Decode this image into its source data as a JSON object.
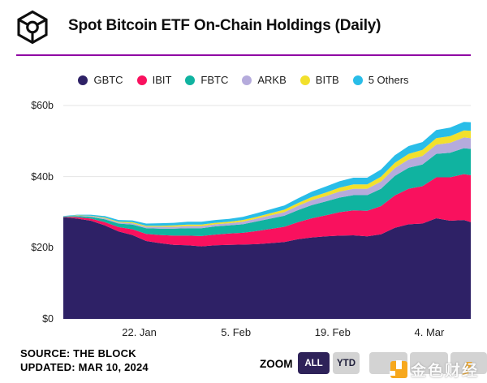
{
  "header": {
    "title": "Spot Bitcoin ETF On-Chain Holdings (Daily)",
    "logo_name": "the-block-logo",
    "divider_color": "#8f00a3"
  },
  "legend": [
    {
      "label": "GBTC",
      "color": "#2e2166"
    },
    {
      "label": "IBIT",
      "color": "#f9115e"
    },
    {
      "label": "FBTC",
      "color": "#10b3a0"
    },
    {
      "label": "ARKB",
      "color": "#b5abdc"
    },
    {
      "label": "BITB",
      "color": "#f2e02c"
    },
    {
      "label": "5 Others",
      "color": "#29bde8"
    }
  ],
  "chart_data": {
    "type": "area",
    "stacked": true,
    "title": "Spot Bitcoin ETF On-Chain Holdings (Daily)",
    "unit": "USD billions",
    "grid": true,
    "legend_position": "top",
    "ylim": [
      0,
      60
    ],
    "y_ticks": [
      {
        "value": 0,
        "label": "$0"
      },
      {
        "value": 20,
        "label": "$20b"
      },
      {
        "value": 40,
        "label": "$40b"
      },
      {
        "value": 60,
        "label": "$60b"
      }
    ],
    "x_range_days": [
      0,
      59
    ],
    "x_ticks": [
      {
        "day": 11,
        "label": "22. Jan"
      },
      {
        "day": 25,
        "label": "5. Feb"
      },
      {
        "day": 39,
        "label": "19. Feb"
      },
      {
        "day": 53,
        "label": "4. Mar"
      }
    ],
    "sample_days": [
      0,
      2,
      4,
      6,
      8,
      10,
      12,
      14,
      16,
      18,
      20,
      22,
      24,
      26,
      28,
      30,
      32,
      34,
      36,
      38,
      40,
      42,
      44,
      46,
      48,
      50,
      52,
      54,
      56,
      58,
      59
    ],
    "sample_dates": [
      "Jan 11",
      "Jan 13",
      "Jan 15",
      "Jan 17",
      "Jan 19",
      "Jan 21",
      "Jan 23",
      "Jan 25",
      "Jan 27",
      "Jan 29",
      "Jan 31",
      "Feb 2",
      "Feb 4",
      "Feb 6",
      "Feb 8",
      "Feb 10",
      "Feb 12",
      "Feb 14",
      "Feb 16",
      "Feb 18",
      "Feb 20",
      "Feb 22",
      "Feb 24",
      "Feb 26",
      "Feb 28",
      "Mar 1",
      "Mar 3",
      "Mar 5",
      "Mar 7",
      "Mar 9",
      "Mar 10"
    ],
    "series": [
      {
        "name": "GBTC",
        "color": "#2e2166",
        "values": [
          28.6,
          28.2,
          27.6,
          26.3,
          24.6,
          23.6,
          21.9,
          21.3,
          20.8,
          20.7,
          20.4,
          20.7,
          20.8,
          20.9,
          21.0,
          21.3,
          21.6,
          22.4,
          22.9,
          23.2,
          23.4,
          23.5,
          23.2,
          23.8,
          25.6,
          26.6,
          26.8,
          28.3,
          27.6,
          27.8,
          27.2
        ]
      },
      {
        "name": "IBIT",
        "color": "#f9115e",
        "values": [
          0.1,
          0.4,
          0.6,
          0.9,
          1.2,
          1.6,
          2.0,
          2.3,
          2.6,
          2.7,
          2.9,
          3.0,
          3.2,
          3.3,
          3.7,
          4.0,
          4.3,
          4.8,
          5.4,
          5.9,
          6.6,
          7.0,
          7.2,
          7.9,
          9.1,
          10.0,
          10.5,
          11.5,
          12.2,
          12.9,
          13.2
        ]
      },
      {
        "name": "FBTC",
        "color": "#10b3a0",
        "values": [
          0.1,
          0.3,
          0.5,
          0.8,
          1.0,
          1.3,
          1.6,
          1.8,
          2.0,
          2.1,
          2.2,
          2.3,
          2.3,
          2.4,
          2.7,
          2.9,
          3.1,
          3.4,
          3.7,
          3.9,
          4.1,
          4.3,
          4.4,
          4.9,
          5.5,
          5.9,
          6.1,
          6.6,
          6.9,
          7.3,
          7.4
        ]
      },
      {
        "name": "ARKB",
        "color": "#b5abdc",
        "values": [
          0.0,
          0.1,
          0.2,
          0.3,
          0.3,
          0.4,
          0.4,
          0.5,
          0.5,
          0.6,
          0.6,
          0.6,
          0.6,
          0.7,
          0.8,
          0.9,
          1.0,
          1.2,
          1.4,
          1.5,
          1.7,
          1.8,
          1.8,
          2.0,
          2.2,
          2.3,
          2.4,
          2.6,
          2.8,
          3.0,
          3.0
        ]
      },
      {
        "name": "BITB",
        "color": "#f2e02c",
        "values": [
          0.0,
          0.1,
          0.1,
          0.2,
          0.2,
          0.3,
          0.3,
          0.3,
          0.4,
          0.4,
          0.4,
          0.4,
          0.4,
          0.5,
          0.5,
          0.6,
          0.7,
          0.8,
          0.9,
          1.0,
          1.1,
          1.2,
          1.2,
          1.4,
          1.5,
          1.6,
          1.7,
          1.8,
          1.9,
          2.0,
          2.1
        ]
      },
      {
        "name": "5 Others",
        "color": "#29bde8",
        "values": [
          0.1,
          0.2,
          0.3,
          0.4,
          0.5,
          0.5,
          0.6,
          0.7,
          0.7,
          0.8,
          0.8,
          0.8,
          0.8,
          0.9,
          1.0,
          1.1,
          1.2,
          1.3,
          1.5,
          1.7,
          1.8,
          1.9,
          1.9,
          2.0,
          2.1,
          2.2,
          2.2,
          2.3,
          2.4,
          2.4,
          2.4
        ]
      }
    ],
    "gridline_color": "#e4e4e4"
  },
  "footer": {
    "source": "SOURCE: THE BLOCK",
    "updated": "UPDATED: MAR 10, 2024",
    "zoom_label": "ZOOM",
    "zoom_buttons": [
      {
        "label": "ALL",
        "active": true
      },
      {
        "label": "YTD",
        "active": false
      },
      {
        "label": "",
        "active": false
      },
      {
        "label": "",
        "active": false
      },
      {
        "label": "",
        "active": false
      }
    ]
  },
  "watermark": {
    "text": "金色财经",
    "logo_color": "#f7a81d"
  }
}
